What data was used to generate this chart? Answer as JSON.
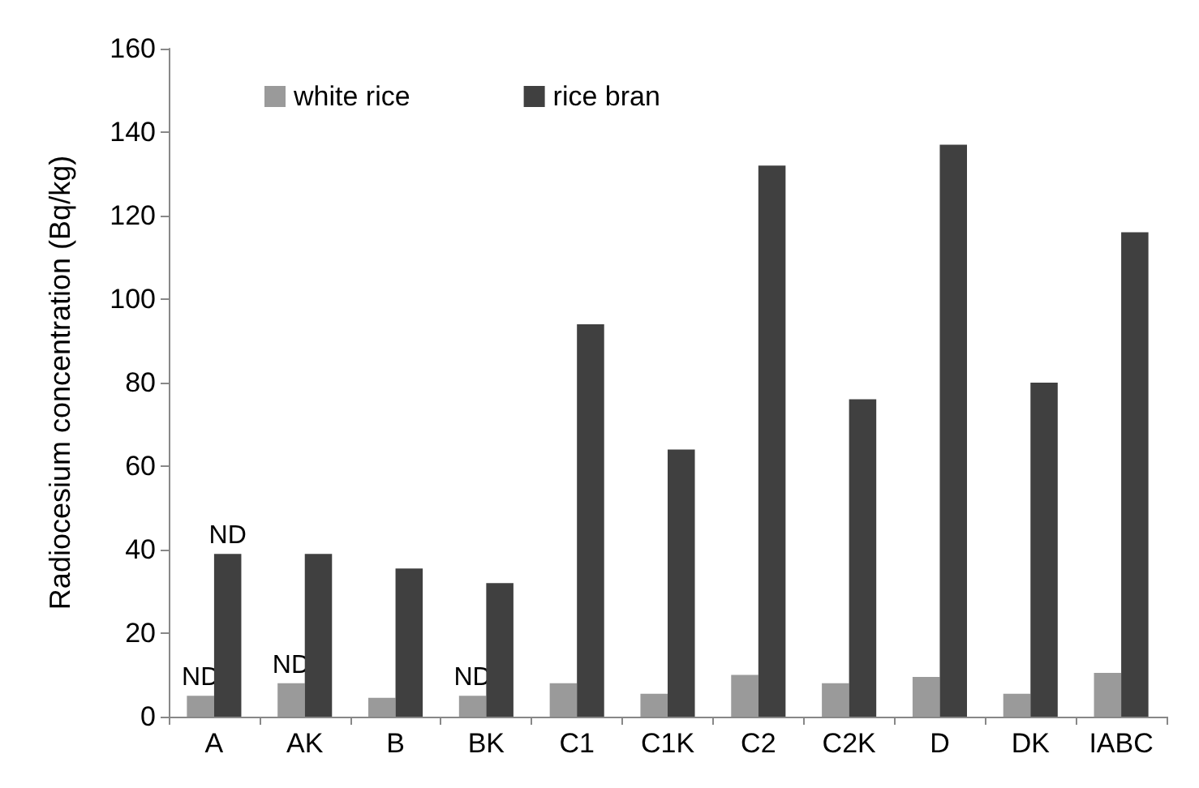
{
  "chart_data": {
    "type": "bar",
    "ylabel": "Radiocesium concentration (Bq/kg)",
    "categories": [
      "A",
      "AK",
      "B",
      "BK",
      "C1",
      "C1K",
      "C2",
      "C2K",
      "D",
      "DK",
      "IABC"
    ],
    "series": [
      {
        "name": "white rice",
        "color": "#9a9a9a",
        "values": [
          5,
          8,
          4.5,
          5,
          8,
          5.5,
          10,
          8,
          9.5,
          5.5,
          10.5
        ]
      },
      {
        "name": "rice bran",
        "color": "#404040",
        "values": [
          39,
          39,
          35.5,
          32,
          94,
          64,
          132,
          76,
          137,
          80,
          116
        ]
      }
    ],
    "ylim": [
      0,
      160
    ],
    "yticks": [
      0,
      20,
      40,
      60,
      80,
      100,
      120,
      140,
      160
    ],
    "grid": false,
    "legend": "top left",
    "annotations": [
      {
        "text": "ND",
        "x": "A",
        "y": 5
      },
      {
        "text": "ND",
        "x": "A",
        "y": 39
      },
      {
        "text": "ND",
        "x": "AK",
        "y": 8
      },
      {
        "text": "ND",
        "x": "BK",
        "y": 5
      }
    ]
  }
}
